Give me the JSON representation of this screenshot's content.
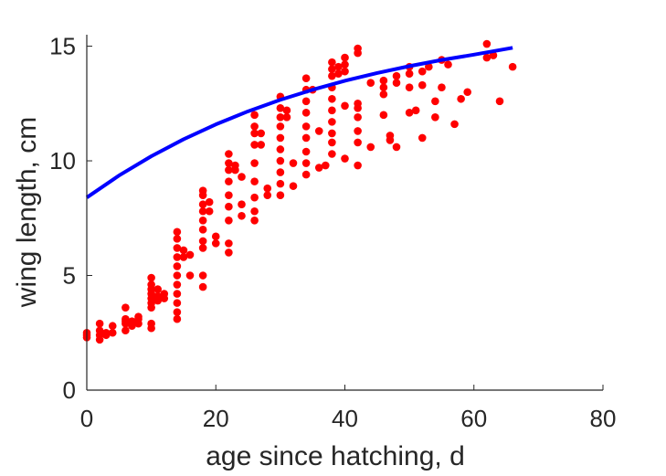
{
  "chart_data": {
    "type": "scatter",
    "title": "",
    "xlabel": "age since hatching, d",
    "ylabel": "wing length, cm",
    "xlim": [
      0,
      80
    ],
    "ylim": [
      0,
      15.5
    ],
    "xticks": [
      0,
      20,
      40,
      60,
      80
    ],
    "yticks": [
      0,
      5,
      10,
      15
    ],
    "xtick_labels": [
      "0",
      "20",
      "40",
      "60",
      "80"
    ],
    "ytick_labels": [
      "0",
      "5",
      "10",
      "15"
    ],
    "grid": false,
    "legend": "none",
    "series": [
      {
        "kind": "points",
        "color": "#ff0000",
        "points": [
          [
            0,
            2.3
          ],
          [
            0,
            2.4
          ],
          [
            0,
            2.5
          ],
          [
            2,
            2.2
          ],
          [
            2,
            2.4
          ],
          [
            2,
            2.6
          ],
          [
            2,
            2.9
          ],
          [
            3,
            2.4
          ],
          [
            3,
            2.5
          ],
          [
            4,
            2.5
          ],
          [
            4,
            2.8
          ],
          [
            6,
            2.6
          ],
          [
            6,
            2.9
          ],
          [
            6,
            3.0
          ],
          [
            6,
            3.1
          ],
          [
            6,
            3.6
          ],
          [
            7,
            2.8
          ],
          [
            7,
            3.0
          ],
          [
            8,
            2.9
          ],
          [
            8,
            3.1
          ],
          [
            8,
            3.2
          ],
          [
            10,
            2.7
          ],
          [
            10,
            2.9
          ],
          [
            10,
            3.6
          ],
          [
            10,
            3.8
          ],
          [
            10,
            4.0
          ],
          [
            10,
            4.2
          ],
          [
            10,
            4.4
          ],
          [
            10,
            4.6
          ],
          [
            10,
            4.9
          ],
          [
            11,
            3.9
          ],
          [
            11,
            4.1
          ],
          [
            11,
            4.4
          ],
          [
            12,
            4.0
          ],
          [
            12,
            4.2
          ],
          [
            14,
            3.1
          ],
          [
            14,
            3.4
          ],
          [
            14,
            3.8
          ],
          [
            14,
            4.2
          ],
          [
            14,
            4.6
          ],
          [
            14,
            5.0
          ],
          [
            14,
            5.4
          ],
          [
            14,
            5.8
          ],
          [
            14,
            6.2
          ],
          [
            14,
            6.6
          ],
          [
            14,
            6.9
          ],
          [
            15,
            5.8
          ],
          [
            15,
            6.1
          ],
          [
            16,
            5.0
          ],
          [
            16,
            5.9
          ],
          [
            18,
            4.5
          ],
          [
            18,
            5.0
          ],
          [
            18,
            6.2
          ],
          [
            18,
            6.5
          ],
          [
            18,
            7.0
          ],
          [
            18,
            7.4
          ],
          [
            18,
            7.8
          ],
          [
            18,
            8.1
          ],
          [
            18,
            8.5
          ],
          [
            18,
            8.7
          ],
          [
            19,
            7.8
          ],
          [
            19,
            8.2
          ],
          [
            20,
            6.4
          ],
          [
            20,
            6.7
          ],
          [
            22,
            6.0
          ],
          [
            22,
            6.4
          ],
          [
            22,
            7.4
          ],
          [
            22,
            8.0
          ],
          [
            22,
            8.5
          ],
          [
            22,
            9.1
          ],
          [
            22,
            9.6
          ],
          [
            22,
            9.9
          ],
          [
            22,
            10.3
          ],
          [
            23,
            9.6
          ],
          [
            23,
            9.8
          ],
          [
            24,
            7.6
          ],
          [
            24,
            8.1
          ],
          [
            24,
            9.3
          ],
          [
            26,
            7.4
          ],
          [
            26,
            7.8
          ],
          [
            26,
            8.4
          ],
          [
            26,
            9.1
          ],
          [
            26,
            9.9
          ],
          [
            26,
            10.7
          ],
          [
            26,
            11.2
          ],
          [
            26,
            11.5
          ],
          [
            26,
            12.0
          ],
          [
            27,
            10.7
          ],
          [
            27,
            11.2
          ],
          [
            28,
            8.5
          ],
          [
            28,
            8.8
          ],
          [
            30,
            8.5
          ],
          [
            30,
            9.0
          ],
          [
            30,
            9.5
          ],
          [
            30,
            10.0
          ],
          [
            30,
            10.5
          ],
          [
            30,
            11.0
          ],
          [
            30,
            11.5
          ],
          [
            30,
            11.9
          ],
          [
            30,
            12.3
          ],
          [
            30,
            12.8
          ],
          [
            31,
            11.9
          ],
          [
            31,
            12.2
          ],
          [
            32,
            8.9
          ],
          [
            32,
            9.9
          ],
          [
            34,
            9.4
          ],
          [
            34,
            9.9
          ],
          [
            34,
            10.4
          ],
          [
            34,
            11.0
          ],
          [
            34,
            11.5
          ],
          [
            34,
            12.1
          ],
          [
            34,
            12.6
          ],
          [
            34,
            13.1
          ],
          [
            34,
            13.6
          ],
          [
            35,
            13.1
          ],
          [
            36,
            9.7
          ],
          [
            36,
            11.3
          ],
          [
            37,
            9.8
          ],
          [
            38,
            10.3
          ],
          [
            38,
            10.8
          ],
          [
            38,
            11.2
          ],
          [
            38,
            11.7
          ],
          [
            38,
            12.2
          ],
          [
            38,
            12.7
          ],
          [
            38,
            13.2
          ],
          [
            38,
            13.7
          ],
          [
            38,
            14.0
          ],
          [
            38,
            14.3
          ],
          [
            39,
            13.8
          ],
          [
            39,
            14.1
          ],
          [
            40,
            10.1
          ],
          [
            40,
            12.4
          ],
          [
            40,
            13.9
          ],
          [
            40,
            14.2
          ],
          [
            40,
            14.5
          ],
          [
            42,
            9.8
          ],
          [
            42,
            10.8
          ],
          [
            42,
            11.3
          ],
          [
            42,
            11.9
          ],
          [
            42,
            12.3
          ],
          [
            42,
            12.5
          ],
          [
            42,
            14.7
          ],
          [
            42,
            14.9
          ],
          [
            44,
            10.6
          ],
          [
            44,
            13.4
          ],
          [
            46,
            12.0
          ],
          [
            46,
            12.9
          ],
          [
            46,
            13.2
          ],
          [
            46,
            13.5
          ],
          [
            47,
            10.9
          ],
          [
            47,
            11.1
          ],
          [
            48,
            10.6
          ],
          [
            48,
            13.4
          ],
          [
            48,
            13.7
          ],
          [
            50,
            12.1
          ],
          [
            50,
            13.2
          ],
          [
            50,
            13.8
          ],
          [
            50,
            14.1
          ],
          [
            51,
            12.2
          ],
          [
            52,
            11.0
          ],
          [
            52,
            13.3
          ],
          [
            52,
            13.9
          ],
          [
            53,
            14.1
          ],
          [
            54,
            11.9
          ],
          [
            54,
            12.6
          ],
          [
            55,
            13.2
          ],
          [
            55,
            14.4
          ],
          [
            56,
            14.2
          ],
          [
            57,
            11.6
          ],
          [
            58,
            12.7
          ],
          [
            59,
            13.0
          ],
          [
            62,
            15.1
          ],
          [
            62,
            14.5
          ],
          [
            63,
            14.6
          ],
          [
            64,
            12.6
          ],
          [
            66,
            14.1
          ]
        ]
      },
      {
        "kind": "line",
        "color": "#0000ff",
        "points": [
          [
            0,
            8.4
          ],
          [
            5,
            9.36
          ],
          [
            10,
            10.2
          ],
          [
            15,
            10.94
          ],
          [
            20,
            11.59
          ],
          [
            25,
            12.16
          ],
          [
            30,
            12.66
          ],
          [
            35,
            13.1
          ],
          [
            40,
            13.49
          ],
          [
            45,
            13.83
          ],
          [
            50,
            14.13
          ],
          [
            55,
            14.4
          ],
          [
            60,
            14.63
          ],
          [
            66,
            14.93
          ]
        ]
      }
    ]
  }
}
